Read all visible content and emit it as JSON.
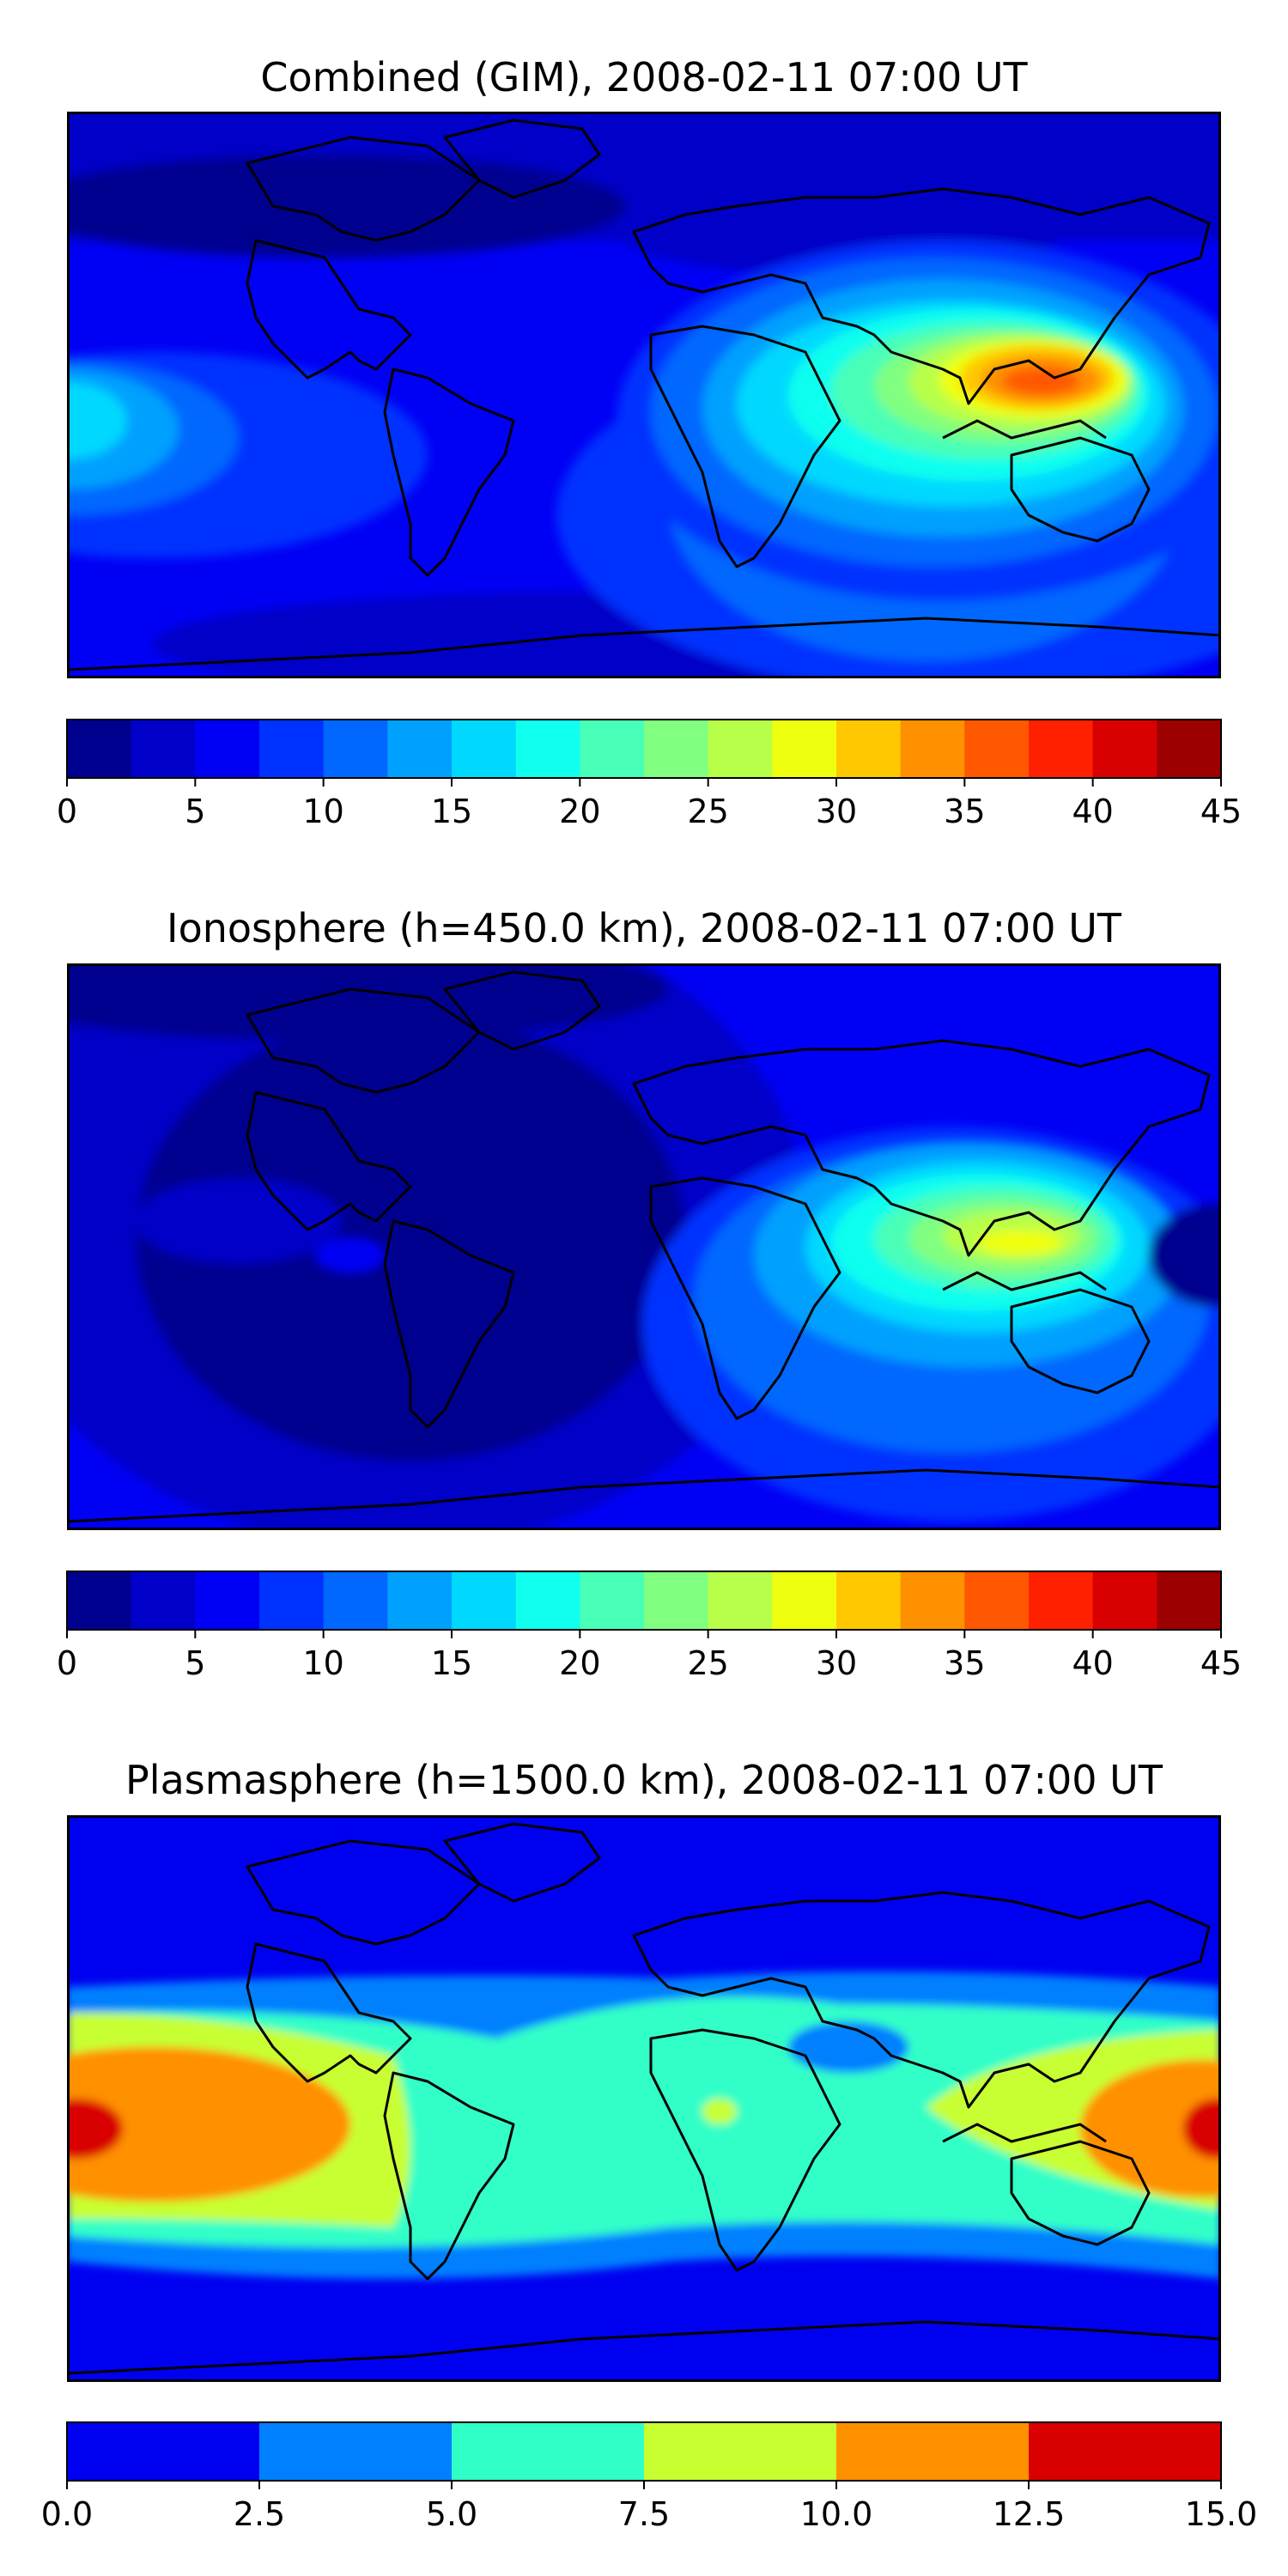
{
  "panels": [
    {
      "title": "Combined (GIM), 2008-02-11 07:00 UT",
      "colorbar": {
        "min": 0,
        "max": 45,
        "step": 2.5,
        "ticks": [
          "0",
          "5",
          "10",
          "15",
          "20",
          "25",
          "30",
          "35",
          "40",
          "45"
        ],
        "colors": [
          "#00008f",
          "#0000c8",
          "#0000f5",
          "#0032ff",
          "#0068ff",
          "#00a0ff",
          "#00d8ff",
          "#10ffef",
          "#48ffb7",
          "#80ff80",
          "#b7ff48",
          "#efff10",
          "#ffc800",
          "#ff9000",
          "#ff5800",
          "#ff2000",
          "#d80000",
          "#9c0000"
        ]
      }
    },
    {
      "title": "Ionosphere  (h=450.0 km), 2008-02-11 07:00 UT",
      "colorbar": {
        "min": 0,
        "max": 45,
        "step": 2.5,
        "ticks": [
          "0",
          "5",
          "10",
          "15",
          "20",
          "25",
          "30",
          "35",
          "40",
          "45"
        ],
        "colors": [
          "#00008f",
          "#0000c8",
          "#0000f5",
          "#0032ff",
          "#0068ff",
          "#00a0ff",
          "#00d8ff",
          "#10ffef",
          "#48ffb7",
          "#80ff80",
          "#b7ff48",
          "#efff10",
          "#ffc800",
          "#ff9000",
          "#ff5800",
          "#ff2000",
          "#d80000",
          "#9c0000"
        ]
      }
    },
    {
      "title": "Plasmasphere (h=1500.0 km), 2008-02-11 07:00 UT",
      "colorbar": {
        "min": 0,
        "max": 15,
        "step": 2.5,
        "ticks": [
          "0.0",
          "2.5",
          "5.0",
          "7.5",
          "10.0",
          "12.5",
          "15.0"
        ],
        "colors": [
          "#0000f0",
          "#0080ff",
          "#30ffc8",
          "#c8ff30",
          "#ff9000",
          "#d80000"
        ]
      }
    }
  ]
}
